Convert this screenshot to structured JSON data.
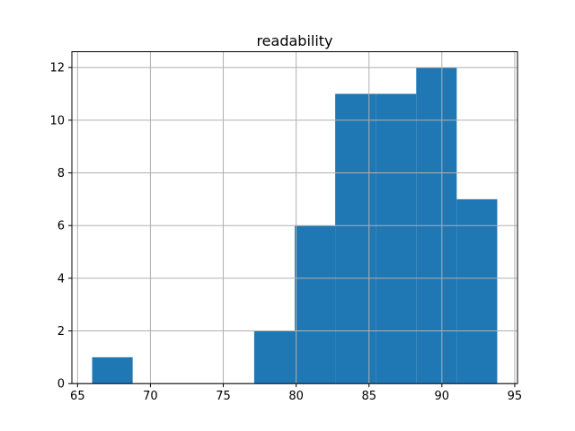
{
  "chart_data": {
    "type": "bar",
    "subtype": "histogram",
    "title": "readability",
    "xlabel": "",
    "ylabel": "",
    "bin_edges": [
      66.0,
      68.78,
      71.56,
      74.34,
      77.12,
      79.9,
      82.68,
      85.46,
      88.24,
      91.02,
      93.8
    ],
    "counts": [
      1,
      0,
      0,
      0,
      2,
      6,
      11,
      11,
      12,
      7
    ],
    "xticks": [
      "65",
      "70",
      "75",
      "80",
      "85",
      "90",
      "95"
    ],
    "xtick_values": [
      65,
      70,
      75,
      80,
      85,
      90,
      95
    ],
    "yticks": [
      "0",
      "2",
      "4",
      "6",
      "8",
      "10",
      "12"
    ],
    "ytick_values": [
      0,
      2,
      4,
      6,
      8,
      10,
      12
    ],
    "xlim": [
      64.61,
      95.19
    ],
    "ylim": [
      0,
      12.6
    ],
    "grid": true,
    "grid_on_top_of_bars": true,
    "legend": false,
    "colors": {
      "bar": "#1f77b4",
      "grid": "#b0b0b0",
      "spine": "#000000",
      "tick": "#000000",
      "text": "#000000",
      "background": "#ffffff"
    }
  }
}
